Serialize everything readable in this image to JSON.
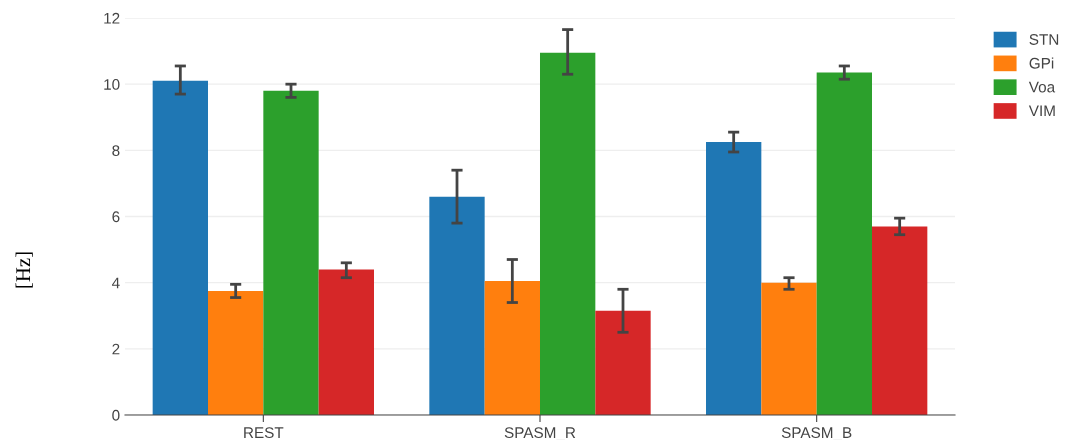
{
  "chart_data": {
    "type": "bar",
    "ylabel": "[Hz]",
    "categories": [
      "REST",
      "SPASM_R",
      "SPASM_B"
    ],
    "series": [
      {
        "name": "STN",
        "color": "#1f77b4",
        "values": [
          10.1,
          6.6,
          8.25
        ],
        "errors": [
          [
            9.7,
            10.55
          ],
          [
            5.8,
            7.4
          ],
          [
            7.95,
            8.55
          ]
        ]
      },
      {
        "name": "GPi",
        "color": "#ff7f0e",
        "values": [
          3.75,
          4.05,
          4.0
        ],
        "errors": [
          [
            3.55,
            3.95
          ],
          [
            3.4,
            4.7
          ],
          [
            3.8,
            4.15
          ]
        ]
      },
      {
        "name": "Voa",
        "color": "#2ca02c",
        "values": [
          9.8,
          10.95,
          10.35
        ],
        "errors": [
          [
            9.6,
            10.0
          ],
          [
            10.3,
            11.65
          ],
          [
            10.15,
            10.55
          ]
        ]
      },
      {
        "name": "VIM",
        "color": "#d62728",
        "values": [
          4.4,
          3.15,
          5.7
        ],
        "errors": [
          [
            4.15,
            4.6
          ],
          [
            2.5,
            3.8
          ],
          [
            5.45,
            5.95
          ]
        ]
      }
    ],
    "ylim": [
      0,
      12
    ],
    "yticks": [
      0,
      2,
      4,
      6,
      8,
      10,
      12
    ],
    "grid": "y",
    "legend": "top right"
  }
}
